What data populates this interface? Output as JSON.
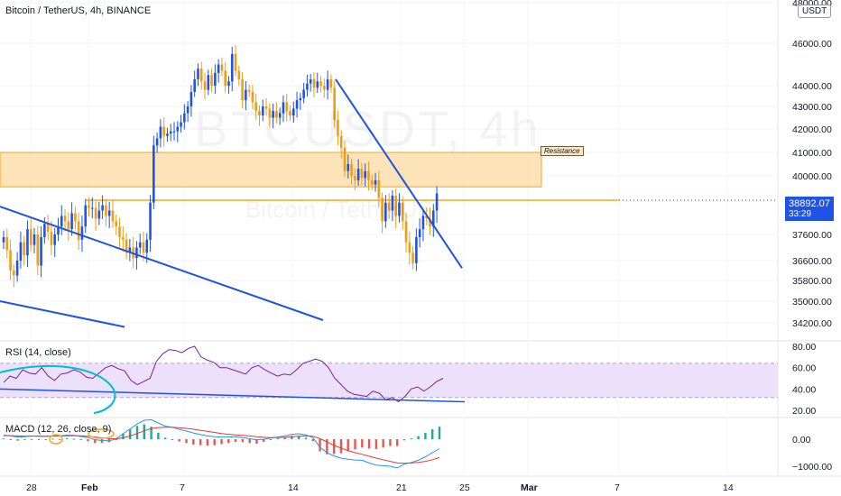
{
  "header": {
    "title": "Bitcoin / TetherUS, 4h, BINANCE",
    "unit": "USDT"
  },
  "watermark": {
    "symbol": "BTCUSDT, 4h",
    "name": "Bitcoin / TetherUS"
  },
  "annotations": {
    "resistance_label": "Resistance"
  },
  "price_badge": {
    "price": "38892.07",
    "countdown": "33:29"
  },
  "colors": {
    "up": "#26a69a",
    "down": "#f39c12",
    "candle_body_up": "#1e53e5",
    "trendline": "#1e53e5",
    "zone_fill": "#fcd9a0",
    "zone_border": "#f5a623",
    "rsi_line": "#7b1fa2",
    "rsi_band": "#ede0fb",
    "macd_line": "#2196f3",
    "signal_line": "#e53935",
    "hist_up": "#26a69a",
    "hist_down": "#ef5350"
  },
  "chart_data": [
    {
      "type": "candlestick",
      "title": "Bitcoin / TetherUS, 4h, BINANCE",
      "x_ticks": [
        "28",
        "Feb",
        "7",
        "14",
        "21",
        "25",
        "Mar",
        "7",
        "14"
      ],
      "y_ticks": [
        "48000.00",
        "46000.00",
        "44000.00",
        "43000.00",
        "42000.00",
        "41000.00",
        "40000.00",
        "38892.07",
        "37600.00",
        "36600.00",
        "35800.00",
        "35000.00",
        "34200.00"
      ],
      "y_unit": "USDT",
      "resistance_zone": [
        39500,
        41000
      ],
      "horizontal_line": 38892,
      "series_close": [
        37500,
        37000,
        36200,
        36000,
        36600,
        37300,
        36800,
        37800,
        37200,
        37600,
        36400,
        37500,
        38000,
        37700,
        37200,
        37600,
        37900,
        38300,
        38100,
        37800,
        38400,
        38100,
        37400,
        37900,
        38700,
        38600,
        38600,
        38200,
        38500,
        38700,
        38300,
        38500,
        38100,
        37900,
        37500,
        37400,
        36900,
        37100,
        36700,
        37100,
        37300,
        36900,
        37400,
        38800,
        41300,
        41600,
        42100,
        41700,
        41800,
        41900,
        41900,
        42100,
        42300,
        42700,
        43000,
        43700,
        44300,
        44800,
        44200,
        43800,
        44500,
        44000,
        44600,
        45000,
        44700,
        44000,
        44200,
        45500,
        44700,
        44300,
        43300,
        43800,
        43700,
        43200,
        42800,
        42600,
        43000,
        42900,
        42500,
        42800,
        42500,
        42700,
        43200,
        42800,
        42600,
        42900,
        43300,
        43400,
        43800,
        44100,
        44300,
        43900,
        44200,
        44000,
        43800,
        44300,
        43900,
        42400,
        41700,
        41200,
        40200,
        40500,
        40000,
        39800,
        40300,
        39900,
        40200,
        39800,
        39600,
        39800,
        39000,
        38100,
        38800,
        38500,
        39100,
        38300,
        38800,
        38100,
        37300,
        36900,
        36500,
        37500,
        37800,
        38300,
        38200,
        37900,
        38500,
        39200
      ]
    },
    {
      "type": "line",
      "title": "RSI (14, close)",
      "y_ticks": [
        "80.00",
        "60.00",
        "40.00",
        "20.00"
      ],
      "band": [
        30,
        70
      ],
      "series": [
        {
          "name": "RSI",
          "values": [
            46,
            52,
            50,
            58,
            55,
            54,
            60,
            52,
            48,
            54,
            55,
            58,
            56,
            51,
            50,
            55,
            60,
            62,
            59,
            57,
            48,
            44,
            47,
            50,
            66,
            73,
            77,
            76,
            74,
            78,
            80,
            70,
            67,
            65,
            60,
            60,
            58,
            56,
            54,
            60,
            62,
            58,
            55,
            52,
            54,
            53,
            58,
            64,
            66,
            68,
            66,
            60,
            50,
            44,
            38,
            35,
            34,
            33,
            38,
            36,
            30,
            32,
            28,
            33,
            40,
            42,
            38,
            42,
            47,
            50
          ]
        }
      ]
    },
    {
      "type": "bar",
      "title": "MACD (12, 26, close, 9)",
      "y_ticks": [
        "0.00",
        "−1000.00"
      ],
      "series": [
        {
          "name": "MACD",
          "values": [
            150,
            120,
            80,
            90,
            120,
            110,
            100,
            130,
            120,
            150,
            140,
            100,
            60,
            -20,
            -50,
            -60,
            10,
            200,
            380,
            560,
            700,
            720,
            600,
            480,
            440,
            360,
            300,
            230,
            170,
            120,
            90,
            80,
            80,
            90,
            60,
            20,
            -30,
            0,
            40,
            80,
            120,
            180,
            200,
            160,
            60,
            -300,
            -500,
            -620,
            -700,
            -740,
            -770,
            -780,
            -880,
            -960,
            -980,
            -1000,
            -1060,
            -920,
            -860,
            -780,
            -650,
            -500,
            -350
          ]
        },
        {
          "name": "Signal",
          "values": [
            130,
            130,
            120,
            115,
            115,
            115,
            110,
            115,
            115,
            125,
            130,
            125,
            110,
            80,
            50,
            20,
            15,
            50,
            120,
            210,
            310,
            390,
            430,
            440,
            440,
            420,
            400,
            370,
            330,
            290,
            250,
            210,
            180,
            160,
            140,
            120,
            90,
            70,
            60,
            60,
            70,
            90,
            110,
            120,
            110,
            20,
            -100,
            -230,
            -330,
            -420,
            -500,
            -560,
            -630,
            -700,
            -760,
            -820,
            -880,
            -890,
            -880,
            -860,
            -820,
            -760,
            -680
          ]
        }
      ]
    }
  ]
}
